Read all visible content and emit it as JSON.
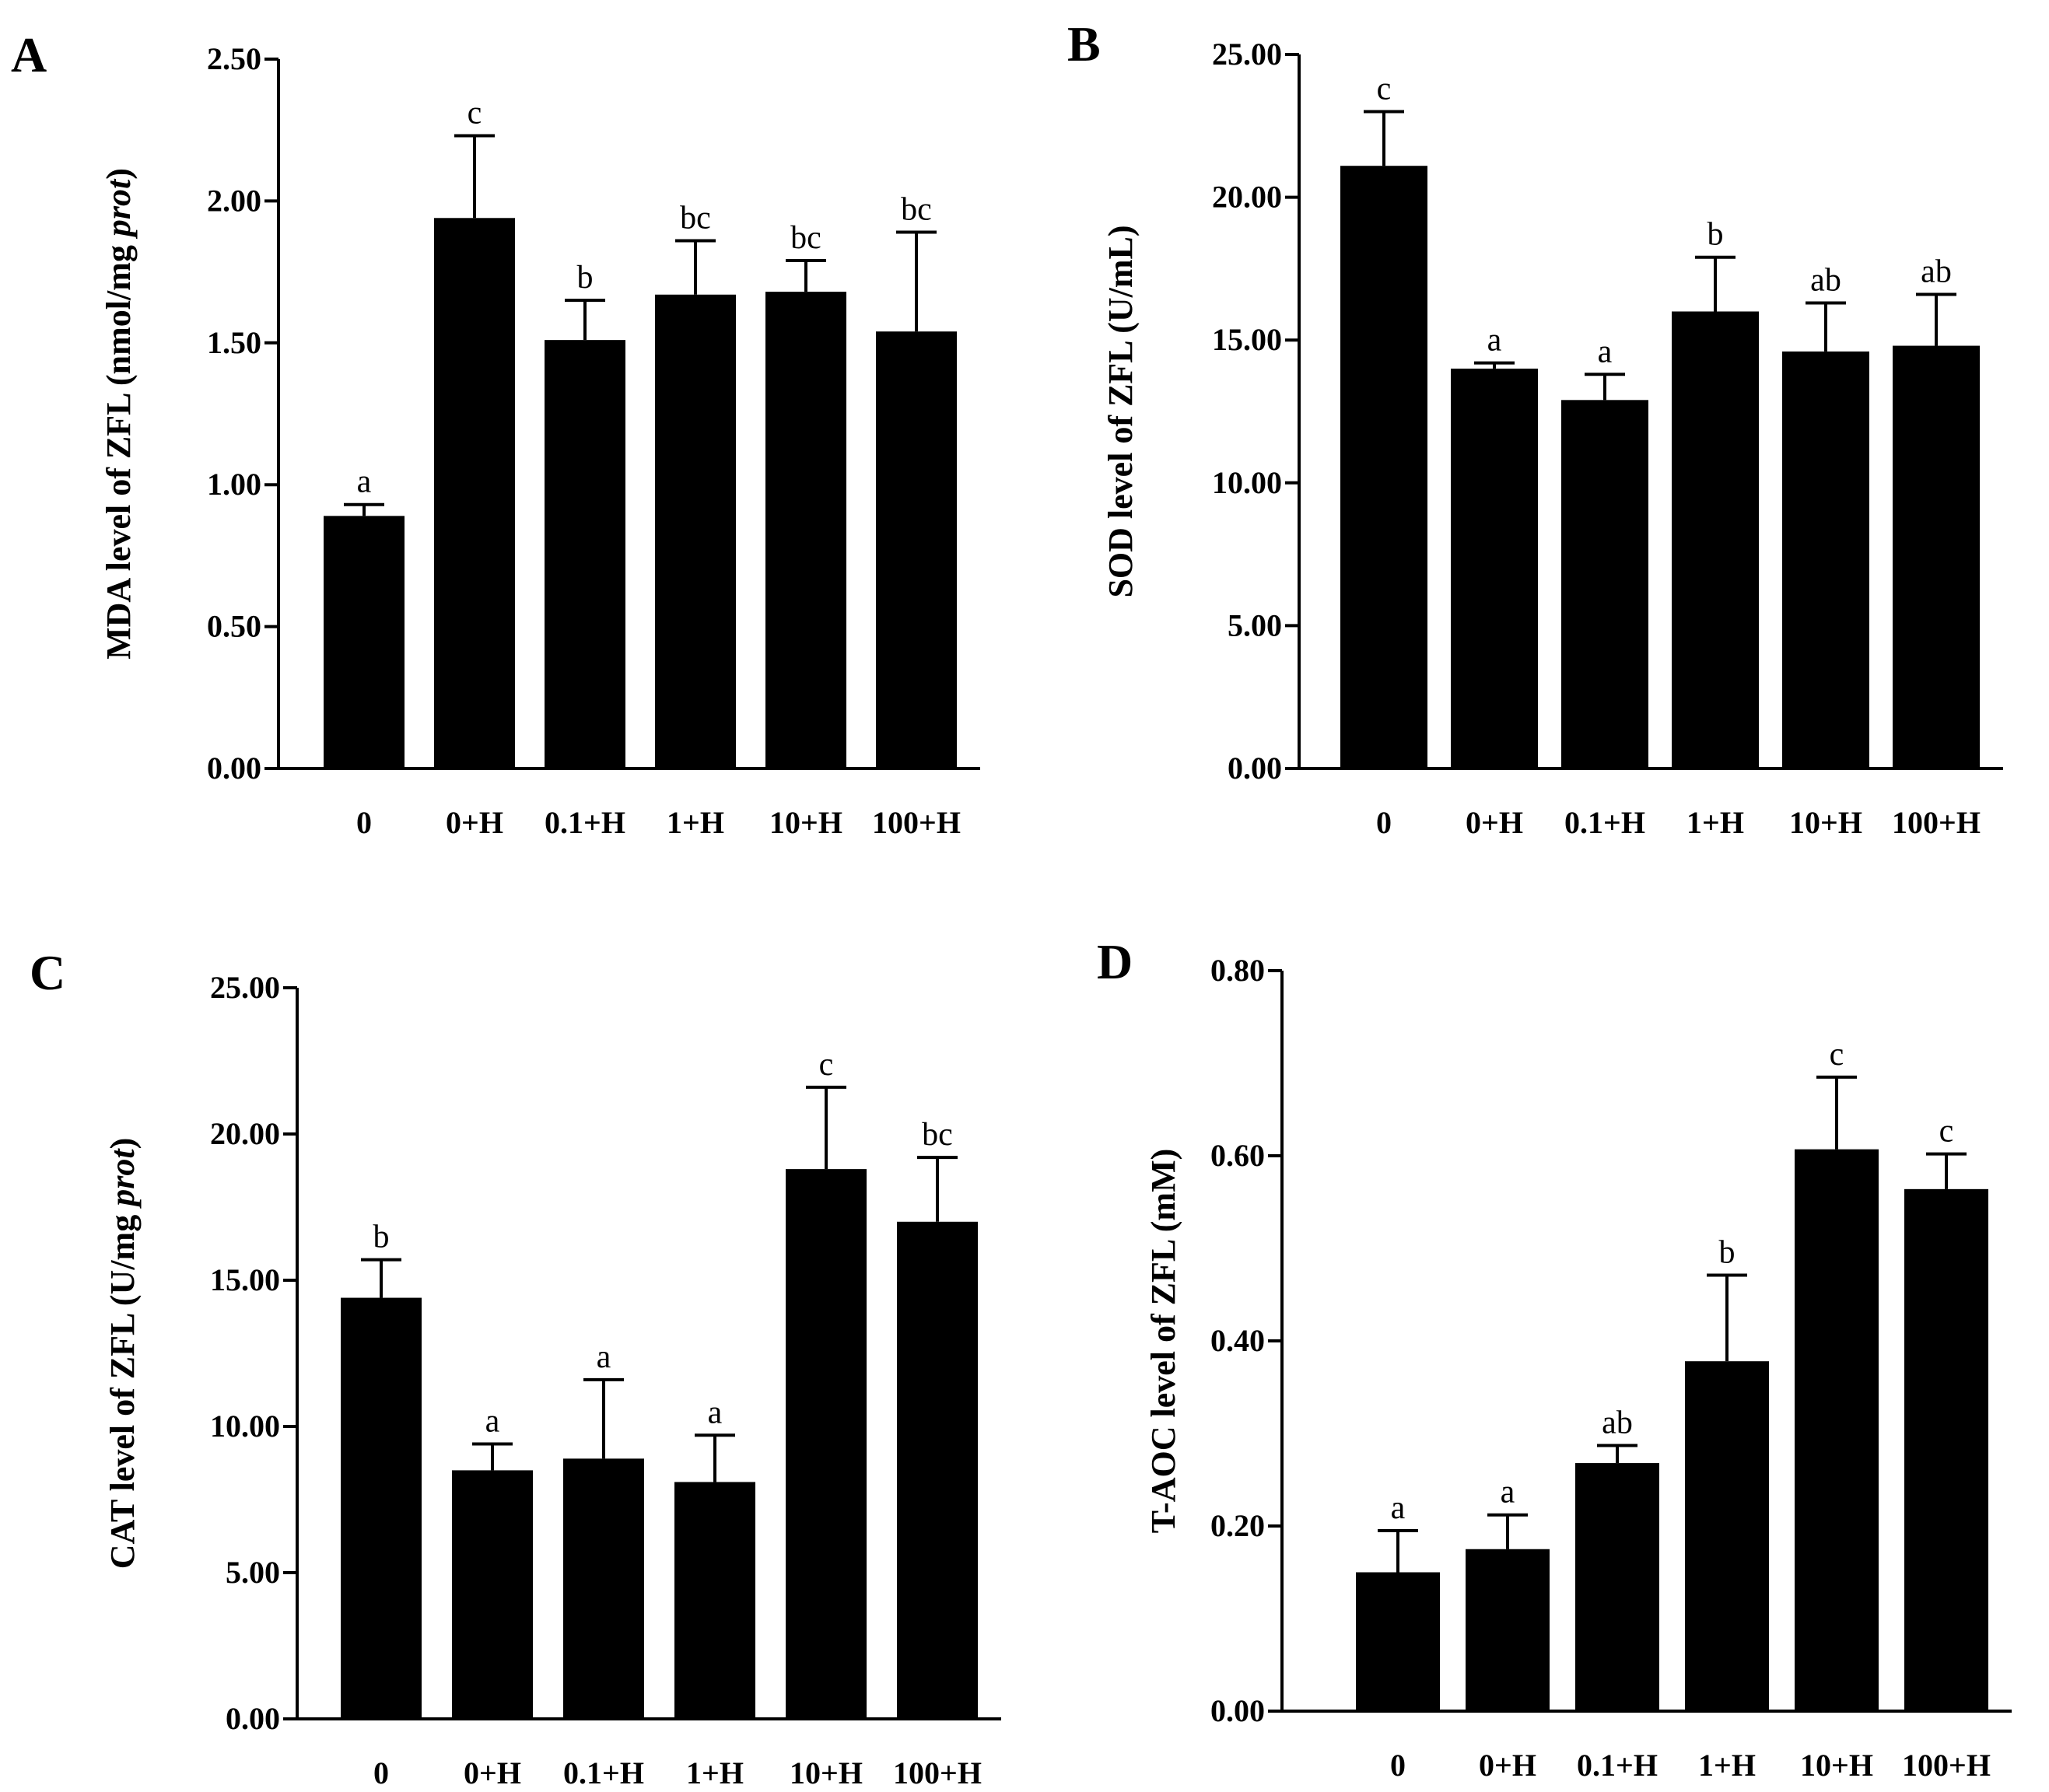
{
  "figure": {
    "panels": [
      "A",
      "B",
      "C",
      "D"
    ]
  },
  "chart_data": [
    {
      "panel": "A",
      "type": "bar",
      "ylabel": "MDA level of ZFL (nmol/mg",
      "ylabel_italic": "prot",
      "ylabel_tail": ")",
      "categories": [
        "0",
        "0+H",
        "0.1+H",
        "1+H",
        "10+H",
        "100+H"
      ],
      "values": [
        0.89,
        1.94,
        1.51,
        1.67,
        1.68,
        1.54
      ],
      "errors": [
        0.04,
        0.29,
        0.14,
        0.19,
        0.11,
        0.35
      ],
      "significance": [
        "a",
        "c",
        "b",
        "bc",
        "bc",
        "bc"
      ],
      "ylim": [
        0,
        2.5
      ],
      "yticks": [
        "0.00",
        "0.50",
        "1.00",
        "1.50",
        "2.00",
        "2.50"
      ],
      "bar_color": "#000000"
    },
    {
      "panel": "B",
      "type": "bar",
      "ylabel": "SOD level of ZFL (U/mL)",
      "ylabel_italic": "",
      "ylabel_tail": "",
      "categories": [
        "0",
        "0+H",
        "0.1+H",
        "1+H",
        "10+H",
        "100+H"
      ],
      "values": [
        21.1,
        14.0,
        12.9,
        16.0,
        14.6,
        14.8
      ],
      "errors": [
        1.9,
        0.2,
        0.9,
        1.9,
        1.7,
        1.8
      ],
      "significance": [
        "c",
        "a",
        "a",
        "b",
        "ab",
        "ab"
      ],
      "ylim": [
        0,
        25
      ],
      "yticks": [
        "0.00",
        "5.00",
        "10.00",
        "15.00",
        "20.00",
        "25.00"
      ],
      "bar_color": "#000000"
    },
    {
      "panel": "C",
      "type": "bar",
      "ylabel": "CAT level of ZFL (U/mg",
      "ylabel_italic": "prot",
      "ylabel_tail": ")",
      "categories": [
        "0",
        "0+H",
        "0.1+H",
        "1+H",
        "10+H",
        "100+H"
      ],
      "values": [
        14.4,
        8.5,
        8.9,
        8.1,
        18.8,
        17.0
      ],
      "errors": [
        1.3,
        0.9,
        2.7,
        1.6,
        2.8,
        2.2
      ],
      "significance": [
        "b",
        "a",
        "a",
        "a",
        "c",
        "bc"
      ],
      "ylim": [
        0,
        25
      ],
      "yticks": [
        "0.00",
        "5.00",
        "10.00",
        "15.00",
        "20.00",
        "25.00"
      ],
      "bar_color": "#000000"
    },
    {
      "panel": "D",
      "type": "bar",
      "ylabel": "T-AOC  level of ZFL (mM)",
      "ylabel_italic": "",
      "ylabel_tail": "",
      "categories": [
        "0",
        "0+H",
        "0.1+H",
        "1+H",
        "10+H",
        "100+H"
      ],
      "values": [
        0.15,
        0.175,
        0.268,
        0.378,
        0.607,
        0.564
      ],
      "errors": [
        0.045,
        0.037,
        0.019,
        0.093,
        0.078,
        0.038
      ],
      "significance": [
        "a",
        "a",
        "ab",
        "b",
        "c",
        "c"
      ],
      "ylim": [
        0,
        0.8
      ],
      "yticks": [
        "0.00",
        "0.20",
        "0.40",
        "0.60",
        "0.80"
      ],
      "bar_color": "#000000"
    }
  ]
}
